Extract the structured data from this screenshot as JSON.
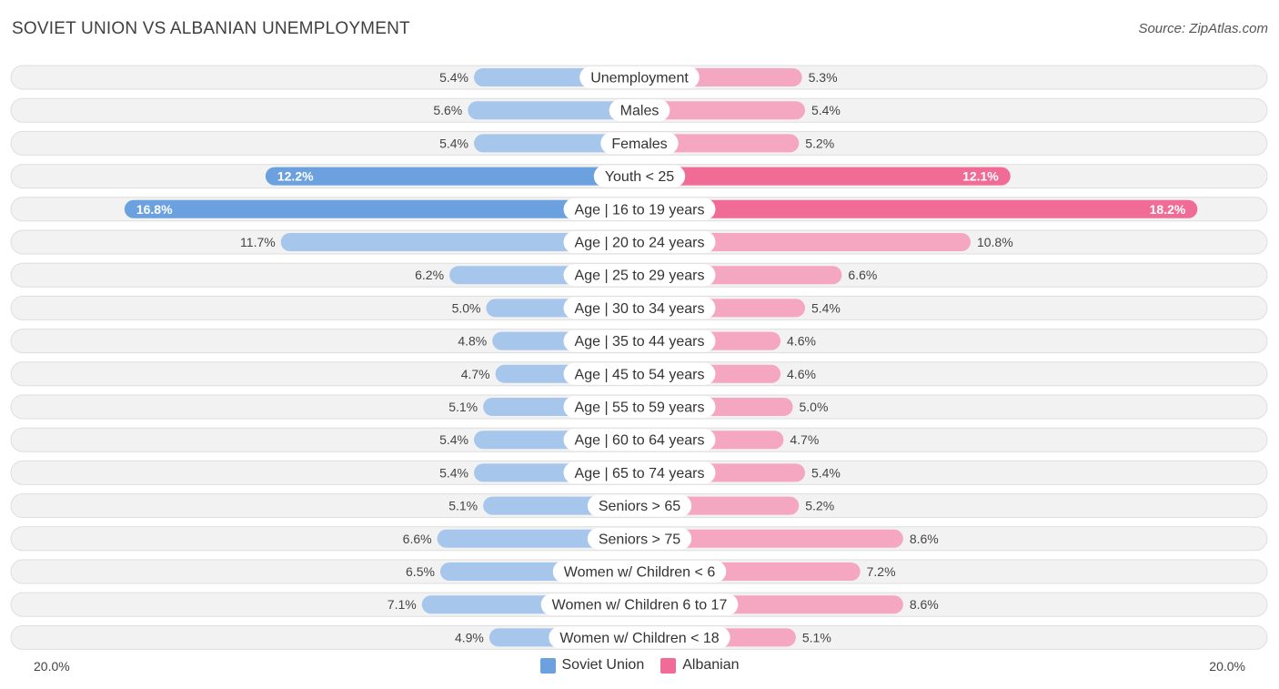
{
  "header": {
    "title": "SOVIET UNION VS ALBANIAN UNEMPLOYMENT",
    "source": "Source: ZipAtlas.com"
  },
  "colors": {
    "soviet_light": "#a7c6eb",
    "soviet_dark": "#6aa1de",
    "albanian_light": "#f5a6c0",
    "albanian_dark": "#f06c97",
    "row_bg": "#f2f2f2",
    "row_border": "#dedede"
  },
  "axis": {
    "left_label": "20.0%",
    "right_label": "20.0%"
  },
  "legend": {
    "series1": "Soviet Union",
    "series2": "Albanian"
  },
  "chart_data": {
    "type": "bar",
    "orientation": "horizontal-diverging",
    "title": "SOVIET UNION VS ALBANIAN UNEMPLOYMENT",
    "xlim": [
      -20,
      20
    ],
    "categories": [
      "Unemployment",
      "Males",
      "Females",
      "Youth < 25",
      "Age | 16 to 19 years",
      "Age | 20 to 24 years",
      "Age | 25 to 29 years",
      "Age | 30 to 34 years",
      "Age | 35 to 44 years",
      "Age | 45 to 54 years",
      "Age | 55 to 59 years",
      "Age | 60 to 64 years",
      "Age | 65 to 74 years",
      "Seniors > 65",
      "Seniors > 75",
      "Women w/ Children < 6",
      "Women w/ Children 6 to 17",
      "Women w/ Children < 18"
    ],
    "series": [
      {
        "name": "Soviet Union",
        "values": [
          5.4,
          5.6,
          5.4,
          12.2,
          16.8,
          11.7,
          6.2,
          5.0,
          4.8,
          4.7,
          5.1,
          5.4,
          5.4,
          5.1,
          6.6,
          6.5,
          7.1,
          4.9
        ],
        "labels": [
          "5.4%",
          "5.6%",
          "5.4%",
          "12.2%",
          "16.8%",
          "11.7%",
          "6.2%",
          "5.0%",
          "4.8%",
          "4.7%",
          "5.1%",
          "5.4%",
          "5.4%",
          "5.1%",
          "6.6%",
          "6.5%",
          "7.1%",
          "4.9%"
        ]
      },
      {
        "name": "Albanian",
        "values": [
          5.3,
          5.4,
          5.2,
          12.1,
          18.2,
          10.8,
          6.6,
          5.4,
          4.6,
          4.6,
          5.0,
          4.7,
          5.4,
          5.2,
          8.6,
          7.2,
          8.6,
          5.1
        ],
        "labels": [
          "5.3%",
          "5.4%",
          "5.2%",
          "12.1%",
          "18.2%",
          "10.8%",
          "6.6%",
          "5.4%",
          "4.6%",
          "4.6%",
          "5.0%",
          "4.7%",
          "5.4%",
          "5.2%",
          "8.6%",
          "7.2%",
          "8.6%",
          "5.1%"
        ]
      }
    ]
  }
}
